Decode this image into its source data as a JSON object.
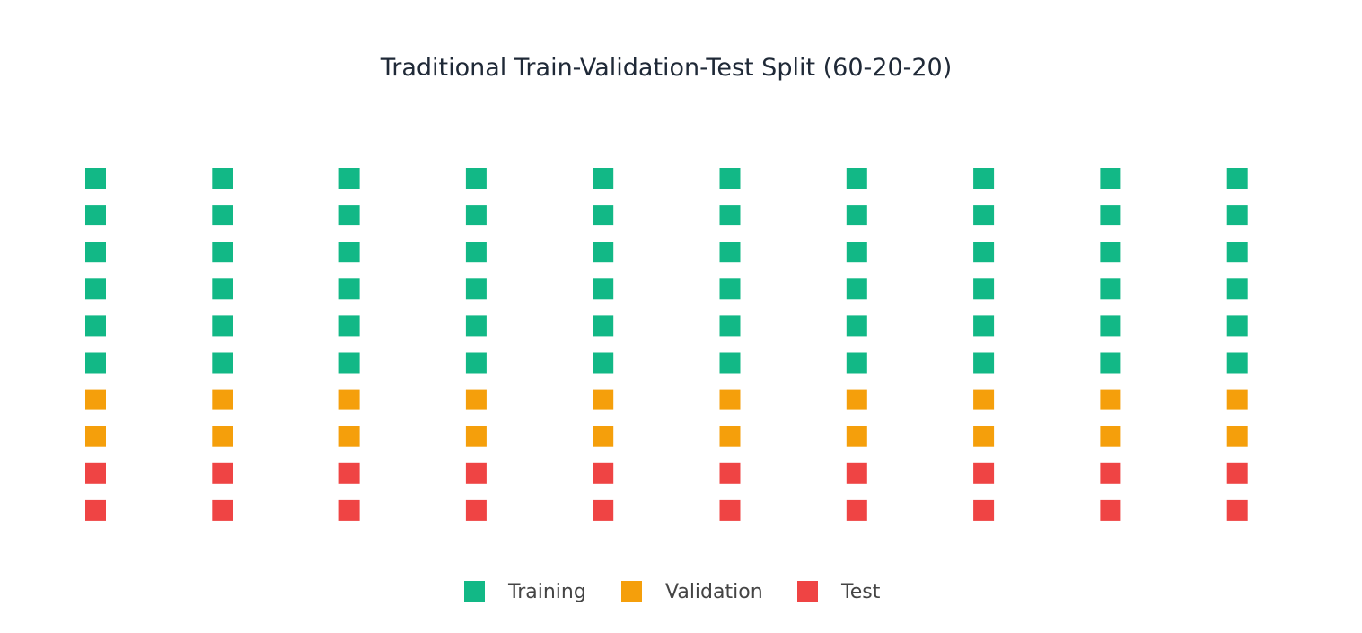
{
  "chart_data": {
    "type": "waffle",
    "title": "Traditional Train-Validation-Test Split (60-20-20)",
    "grid": false,
    "legend_placement": "bottom",
    "layout": {
      "columns": 10,
      "rows": 10,
      "fill_order": "column-wise, top to bottom"
    },
    "series": [
      {
        "name": "Training",
        "count": 60,
        "percent": 60,
        "color": "#12b886"
      },
      {
        "name": "Validation",
        "count": 20,
        "percent": 20,
        "color": "#f59f0b"
      },
      {
        "name": "Test",
        "count": 20,
        "percent": 20,
        "color": "#ef4444"
      }
    ],
    "total_cells": 100
  }
}
